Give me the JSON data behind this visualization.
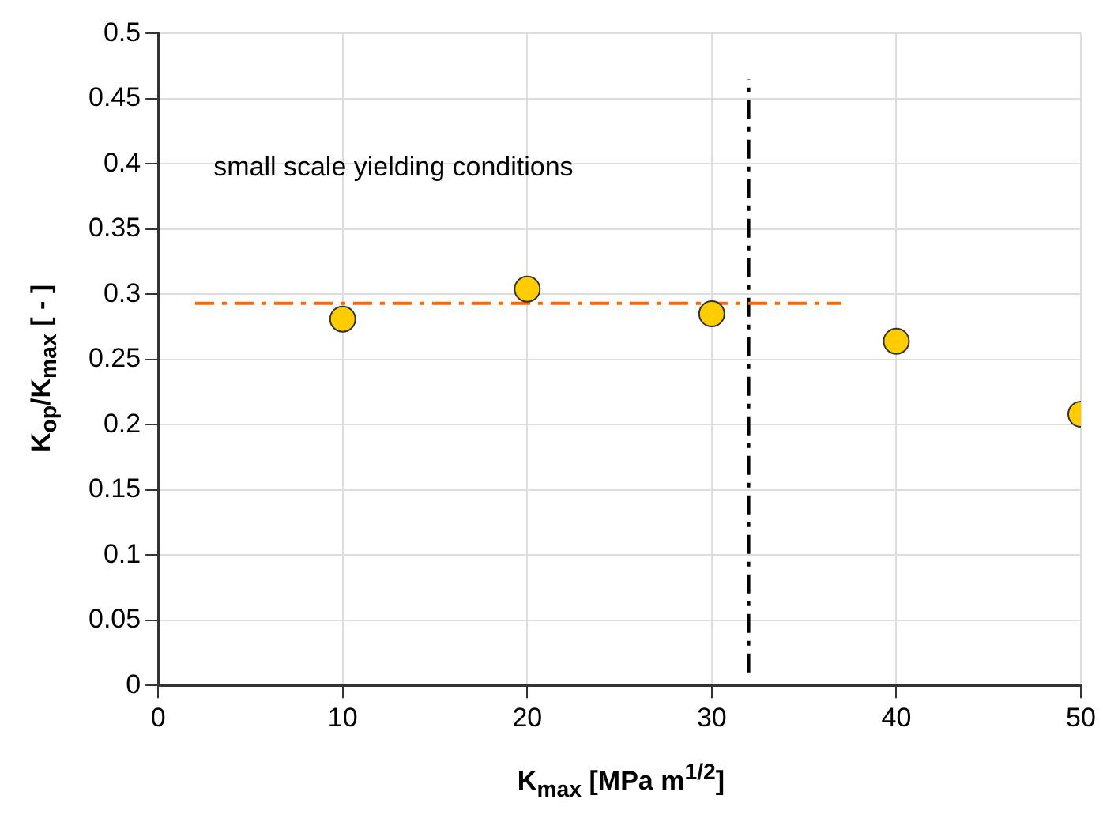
{
  "chart_data": {
    "type": "scatter",
    "xlabel": "K$_{max}$ [MPa m$^{1/2}$]",
    "ylabel": "K$_{op}$/K$_{max}$ [ - ]",
    "annotations": [
      "small scale yielding conditions"
    ],
    "xlim": [
      0,
      50
    ],
    "xticks": [
      0,
      10,
      20,
      30,
      40,
      50
    ],
    "ylim": [
      0,
      0.5
    ],
    "yticks": [
      0,
      0.05,
      0.1,
      0.15,
      0.2,
      0.25,
      0.3,
      0.35,
      0.4,
      0.45,
      0.5
    ],
    "grid": true,
    "series": [
      {
        "type": "scatter",
        "marker": "circle",
        "color": "#ffcc00",
        "x": [
          10,
          20,
          30,
          40,
          50
        ],
        "values": [
          0.281,
          0.304,
          0.285,
          0.264,
          0.208
        ]
      },
      {
        "type": "line",
        "color": "#ff6600",
        "line_style": "dashed",
        "x": [
          2,
          37
        ],
        "values": [
          0.293,
          0.293
        ]
      },
      {
        "type": "line",
        "color": "#000000",
        "line_style": "dashed",
        "x": [
          32,
          32
        ],
        "values": [
          0.01,
          0.465
        ]
      }
    ]
  }
}
